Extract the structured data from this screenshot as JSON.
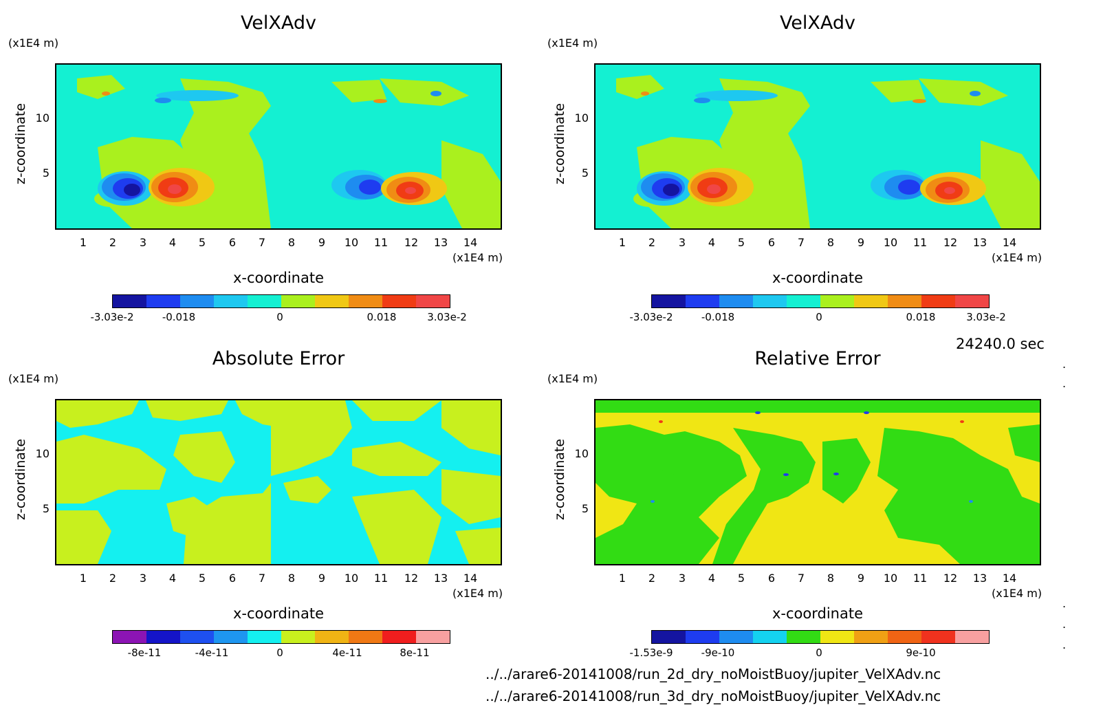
{
  "figure": {
    "time_label": "24240.0 sec",
    "paths": [
      "../../arare6-20141008/run_2d_dry_noMoistBuoy/jupiter_VelXAdv.nc",
      "../../arare6-20141008/run_3d_dry_noMoistBuoy/jupiter_VelXAdv.nc"
    ],
    "z_unit": "(x1E4 m)",
    "x_unit": "(x1E4 m)",
    "x_label": "x-coordinate",
    "z_label": "z-coordinate"
  },
  "chart_data": [
    {
      "type": "heatmap",
      "title": "VelXAdv",
      "source": "2d",
      "xlabel": "x-coordinate",
      "ylabel": "z-coordinate",
      "xlim": [
        0,
        15
      ],
      "ylim": [
        0,
        15
      ],
      "x_ticks": [
        "1",
        "2",
        "3",
        "4",
        "5",
        "6",
        "7",
        "8",
        "9",
        "10",
        "11",
        "12",
        "13",
        "14"
      ],
      "z_ticks": [
        "5",
        "10"
      ],
      "colorbar": {
        "colors": [
          "#1414a0",
          "#1e3cf0",
          "#1e8cf0",
          "#1ec8f0",
          "#14f0d2",
          "#aaf01e",
          "#f0c814",
          "#f08c14",
          "#f03c14",
          "#f04646"
        ],
        "tick_labels": [
          "-3.03e-2",
          "-0.018",
          "0",
          "0.018",
          "3.03e-2"
        ],
        "range": [
          -0.0303,
          0.0303
        ]
      }
    },
    {
      "type": "heatmap",
      "title": "VelXAdv",
      "source": "3d",
      "xlabel": "x-coordinate",
      "ylabel": "z-coordinate",
      "xlim": [
        0,
        15
      ],
      "ylim": [
        0,
        15
      ],
      "x_ticks": [
        "1",
        "2",
        "3",
        "4",
        "5",
        "6",
        "7",
        "8",
        "9",
        "10",
        "11",
        "12",
        "13",
        "14"
      ],
      "z_ticks": [
        "5",
        "10"
      ],
      "colorbar": {
        "colors": [
          "#1414a0",
          "#1e3cf0",
          "#1e8cf0",
          "#1ec8f0",
          "#14f0d2",
          "#aaf01e",
          "#f0c814",
          "#f08c14",
          "#f03c14",
          "#f04646"
        ],
        "tick_labels": [
          "-3.03e-2",
          "-0.018",
          "0",
          "0.018",
          "3.03e-2"
        ],
        "range": [
          -0.0303,
          0.0303
        ]
      }
    },
    {
      "type": "heatmap",
      "title": "Absolute Error",
      "xlabel": "x-coordinate",
      "ylabel": "z-coordinate",
      "xlim": [
        0,
        15
      ],
      "ylim": [
        0,
        15
      ],
      "x_ticks": [
        "1",
        "2",
        "3",
        "4",
        "5",
        "6",
        "7",
        "8",
        "9",
        "10",
        "11",
        "12",
        "13",
        "14"
      ],
      "z_ticks": [
        "5",
        "10"
      ],
      "colorbar": {
        "colors": [
          "#8c14b4",
          "#1414c8",
          "#1e50f0",
          "#1e96f0",
          "#14f0f0",
          "#c8f01e",
          "#f0b414",
          "#f07814",
          "#f01e1e",
          "#f8a0a0"
        ],
        "tick_labels": [
          "-8e-11",
          "-4e-11",
          "0",
          "4e-11",
          "8e-11"
        ],
        "range": [
          -1e-10,
          1e-10
        ]
      }
    },
    {
      "type": "heatmap",
      "title": "Relative Error",
      "xlabel": "x-coordinate",
      "ylabel": "z-coordinate",
      "xlim": [
        0,
        15
      ],
      "ylim": [
        0,
        15
      ],
      "x_ticks": [
        "1",
        "2",
        "3",
        "4",
        "5",
        "6",
        "7",
        "8",
        "9",
        "10",
        "11",
        "12",
        "13",
        "14"
      ],
      "z_ticks": [
        "5",
        "10"
      ],
      "colorbar": {
        "colors": [
          "#1414a0",
          "#1e3cf0",
          "#1e8cf0",
          "#14d2f0",
          "#32dc14",
          "#f0e614",
          "#f0a014",
          "#f06414",
          "#f0321e",
          "#f8a0a0"
        ],
        "tick_labels": [
          "-1.53e-9",
          "-9e-10",
          "0",
          "9e-10"
        ],
        "range": [
          -1.53e-09,
          1.53e-09
        ]
      }
    }
  ]
}
